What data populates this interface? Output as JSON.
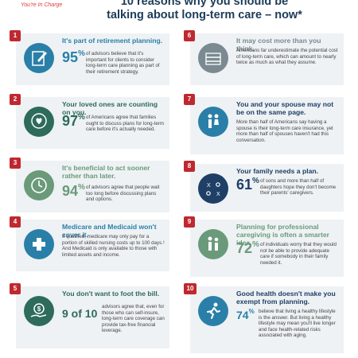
{
  "header": {
    "tagline": "You're In Charge",
    "headline_line1": "10 reasons why you should be",
    "headline_line2": "talking about long-term care – now*"
  },
  "cards": [
    {
      "number": "1",
      "title": "It's part of retirement planning.",
      "stat": "95",
      "unit": "%",
      "body": "of advisors believe that it's important for clients to consider long-term care planning as part of their retirement strategy.",
      "icon": "pencil-note-icon",
      "color": "#2a7fa8"
    },
    {
      "number": "2",
      "title": "Your loved ones are counting on you.",
      "stat": "97",
      "unit": "%",
      "body": "of Americans agree that families ought to discuss plans for long-term care before it's actually needed.",
      "icon": "heart-chat-icon",
      "color": "#2e6b5a"
    },
    {
      "number": "3",
      "title": "It's beneficial to act sooner rather than later.",
      "stat": "94",
      "unit": "%",
      "body": "of advisors agree that people wait too long before discussing plans and options.",
      "icon": "clock-icon",
      "color": "#6a9a7a"
    },
    {
      "number": "4",
      "title": "Medicare and Medicaid won't cover it.",
      "stat": "",
      "unit": "",
      "body": "If qualified, medicare may only pay for a portion of skilled nursing costs up to 100 days.¹ And Medicaid is only available to those with limited assets and income.",
      "icon": "medical-cross-icon",
      "color": "#2a7fa8"
    },
    {
      "number": "5",
      "title": "You don't want to foot the bill.",
      "stat": "9 of 10",
      "unit": "",
      "body": "advisors agree that, even for those who can self-insure, long-term care coverage can provide tax-free financial leverage.",
      "icon": "money-hand-icon",
      "color": "#2e6b5a"
    },
    {
      "number": "6",
      "title": "It may cost more than you think.",
      "stat": "",
      "unit": "",
      "body": "Americans far underestimate the potential cost of long-term care, which can amount to nearly twice as much as what they assume.",
      "icon": "cash-stack-icon",
      "color": "#7a8a90"
    },
    {
      "number": "7",
      "title": "You and your spouse may not be on the same page.",
      "stat": "",
      "unit": "",
      "body": "More than half of Americans say having a spouse is their long-term care insurance, yet more than half of spouses haven't had this conversation.",
      "icon": "couple-icon",
      "color": "#1f3f66"
    },
    {
      "number": "8",
      "title": "Your family needs a plan.",
      "stat": "61",
      "unit": "%",
      "body": "of sons and more than half of daughters hope they don't become their parents' caregivers.",
      "icon": "strategy-board-icon",
      "color": "#1f3f66"
    },
    {
      "number": "9",
      "title": "Planning for professional caregiving is often a smarter idea.",
      "stat": "72",
      "unit": "%",
      "body": "of individuals worry that they would not be able to provide adequate care if somebody in their family needed it.",
      "icon": "caregiver-icon",
      "color": "#6a9a7a"
    },
    {
      "number": "10",
      "title": "Good health doesn't make you exempt from planning.",
      "stat": "74",
      "unit": "%",
      "body": "believe that living a healthy lifestyle is the answer. But living a healthy lifestyle may mean you'll live longer and face health-related risks associated with aging.",
      "icon": "runner-icon",
      "color": "#2a7fa8"
    }
  ]
}
